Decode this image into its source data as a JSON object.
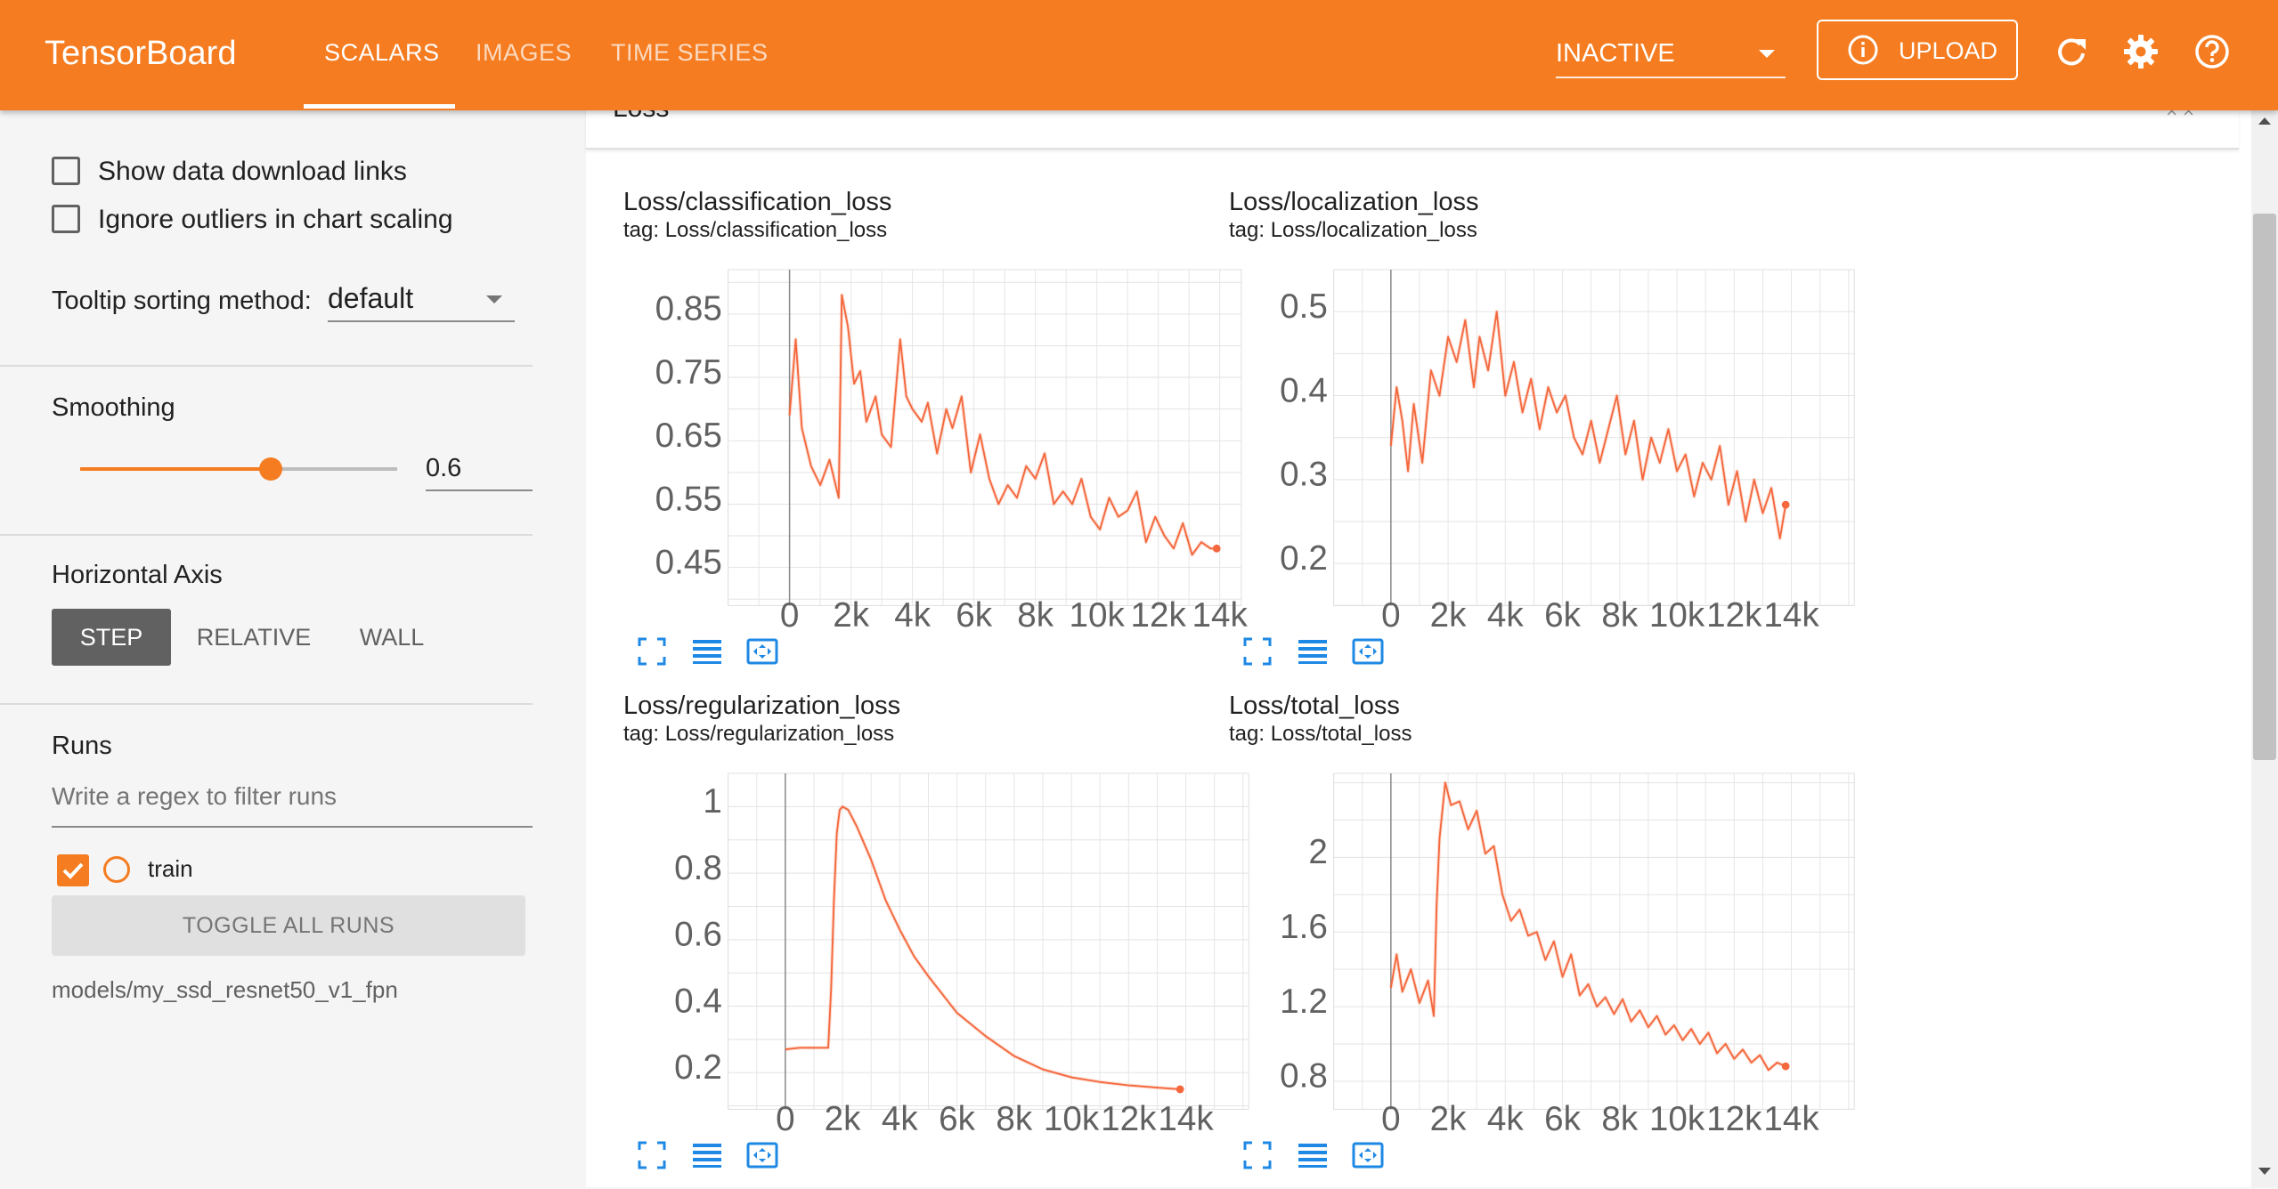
{
  "app": {
    "title": "TensorBoard"
  },
  "header": {
    "tabs": [
      {
        "label": "SCALARS",
        "active": true
      },
      {
        "label": "IMAGES",
        "active": false
      },
      {
        "label": "TIME SERIES",
        "active": false
      }
    ],
    "run_select_value": "INACTIVE",
    "upload_label": "UPLOAD",
    "icons": [
      "refresh-icon",
      "gear-icon",
      "help-icon"
    ],
    "accent_color": "#f57c20"
  },
  "sidebar": {
    "show_download_links": {
      "label": "Show data download links",
      "checked": false
    },
    "ignore_outliers": {
      "label": "Ignore outliers in chart scaling",
      "checked": false
    },
    "tooltip_sorting": {
      "label": "Tooltip sorting method:",
      "value": "default"
    },
    "smoothing": {
      "label": "Smoothing",
      "value": "0.6",
      "fraction": 0.6
    },
    "horizontal_axis": {
      "label": "Horizontal Axis",
      "options": [
        "STEP",
        "RELATIVE",
        "WALL"
      ],
      "selected": "STEP"
    },
    "runs": {
      "label": "Runs",
      "filter_placeholder": "Write a regex to filter runs",
      "items": [
        {
          "name": "train",
          "checked": true,
          "color": "#f4683d"
        }
      ],
      "toggle_label": "TOGGLE ALL RUNS",
      "path": "models/my_ssd_resnet50_v1_fpn"
    }
  },
  "main": {
    "card_title": "Loss",
    "charts": [
      {
        "title": "Loss/classification_loss",
        "tag": "tag: Loss/classification_loss"
      },
      {
        "title": "Loss/localization_loss",
        "tag": "tag: Loss/localization_loss"
      },
      {
        "title": "Loss/regularization_loss",
        "tag": "tag: Loss/regularization_loss"
      },
      {
        "title": "Loss/total_loss",
        "tag": "tag: Loss/total_loss"
      }
    ]
  },
  "chart_data": [
    {
      "type": "line",
      "title": "Loss/classification_loss",
      "x_ticks": [
        0,
        2000,
        4000,
        6000,
        8000,
        10000,
        12000,
        14000
      ],
      "x_tick_labels": [
        "0",
        "2k",
        "4k",
        "6k",
        "8k",
        "10k",
        "12k",
        "14k"
      ],
      "y_ticks": [
        0.45,
        0.55,
        0.65,
        0.75,
        0.85
      ],
      "y_tick_labels": [
        "0.45",
        "0.55",
        "0.65",
        "0.75",
        "0.85"
      ],
      "xlim": [
        -2000,
        14700
      ],
      "ylim": [
        0.39,
        0.92
      ],
      "series": [
        {
          "color": "#f4683d",
          "x": [
            0,
            200,
            400,
            700,
            1000,
            1300,
            1600,
            1700,
            1900,
            2100,
            2300,
            2500,
            2800,
            3000,
            3300,
            3600,
            3800,
            4000,
            4300,
            4500,
            4800,
            5100,
            5300,
            5600,
            5900,
            6200,
            6500,
            6800,
            7100,
            7400,
            7700,
            8000,
            8300,
            8600,
            8900,
            9200,
            9500,
            9800,
            10100,
            10400,
            10700,
            11000,
            11300,
            11600,
            11900,
            12200,
            12500,
            12800,
            13100,
            13400,
            13700,
            13900
          ],
          "y": [
            0.69,
            0.81,
            0.67,
            0.61,
            0.58,
            0.62,
            0.56,
            0.88,
            0.83,
            0.74,
            0.76,
            0.68,
            0.72,
            0.66,
            0.64,
            0.81,
            0.72,
            0.7,
            0.68,
            0.71,
            0.63,
            0.7,
            0.67,
            0.72,
            0.6,
            0.66,
            0.59,
            0.55,
            0.58,
            0.56,
            0.61,
            0.59,
            0.63,
            0.55,
            0.57,
            0.55,
            0.59,
            0.53,
            0.51,
            0.56,
            0.53,
            0.54,
            0.57,
            0.49,
            0.53,
            0.5,
            0.48,
            0.52,
            0.47,
            0.49,
            0.48,
            0.48
          ]
        }
      ]
    },
    {
      "type": "line",
      "title": "Loss/localization_loss",
      "x_ticks": [
        0,
        2000,
        4000,
        6000,
        8000,
        10000,
        12000,
        14000
      ],
      "x_tick_labels": [
        "0",
        "2k",
        "4k",
        "6k",
        "8k",
        "10k",
        "12k",
        "14k"
      ],
      "y_ticks": [
        0.2,
        0.3,
        0.4,
        0.5
      ],
      "y_tick_labels": [
        "0.2",
        "0.3",
        "0.4",
        "0.5"
      ],
      "xlim": [
        -2000,
        16200
      ],
      "ylim": [
        0.15,
        0.55
      ],
      "series": [
        {
          "color": "#f4683d",
          "x": [
            0,
            200,
            400,
            600,
            800,
            1100,
            1400,
            1700,
            2000,
            2300,
            2600,
            2900,
            3100,
            3400,
            3700,
            4000,
            4300,
            4600,
            4900,
            5200,
            5500,
            5800,
            6100,
            6400,
            6700,
            7000,
            7300,
            7600,
            7900,
            8200,
            8500,
            8800,
            9100,
            9400,
            9700,
            10000,
            10300,
            10600,
            10900,
            11200,
            11500,
            11800,
            12100,
            12400,
            12700,
            13000,
            13300,
            13600,
            13800
          ],
          "y": [
            0.34,
            0.41,
            0.37,
            0.31,
            0.39,
            0.32,
            0.43,
            0.4,
            0.47,
            0.44,
            0.49,
            0.41,
            0.47,
            0.43,
            0.5,
            0.4,
            0.44,
            0.38,
            0.42,
            0.36,
            0.41,
            0.38,
            0.4,
            0.35,
            0.33,
            0.37,
            0.32,
            0.36,
            0.4,
            0.33,
            0.37,
            0.3,
            0.35,
            0.32,
            0.36,
            0.31,
            0.33,
            0.28,
            0.32,
            0.3,
            0.34,
            0.27,
            0.31,
            0.25,
            0.3,
            0.26,
            0.29,
            0.23,
            0.27
          ]
        }
      ]
    },
    {
      "type": "line",
      "title": "Loss/regularization_loss",
      "x_ticks": [
        0,
        2000,
        4000,
        6000,
        8000,
        10000,
        12000,
        14000
      ],
      "x_tick_labels": [
        "0",
        "2k",
        "4k",
        "6k",
        "8k",
        "10k",
        "12k",
        "14k"
      ],
      "y_ticks": [
        0.2,
        0.4,
        0.6,
        0.8,
        1.0
      ],
      "y_tick_labels": [
        "0.2",
        "0.4",
        "0.6",
        "0.8",
        "1"
      ],
      "xlim": [
        -2000,
        16200
      ],
      "ylim": [
        0.09,
        1.1
      ],
      "series": [
        {
          "color": "#f4683d",
          "x": [
            0,
            500,
            1000,
            1500,
            1600,
            1700,
            1800,
            1900,
            2000,
            2200,
            2500,
            3000,
            3500,
            4000,
            4500,
            5000,
            6000,
            7000,
            8000,
            9000,
            10000,
            11000,
            12000,
            13000,
            13800
          ],
          "y": [
            0.27,
            0.275,
            0.275,
            0.275,
            0.45,
            0.72,
            0.92,
            0.99,
            1.0,
            0.99,
            0.94,
            0.84,
            0.72,
            0.63,
            0.55,
            0.49,
            0.38,
            0.31,
            0.25,
            0.21,
            0.186,
            0.172,
            0.162,
            0.155,
            0.15
          ]
        }
      ]
    },
    {
      "type": "line",
      "title": "Loss/total_loss",
      "x_ticks": [
        0,
        2000,
        4000,
        6000,
        8000,
        10000,
        12000,
        14000
      ],
      "x_tick_labels": [
        "0",
        "2k",
        "4k",
        "6k",
        "8k",
        "10k",
        "12k",
        "14k"
      ],
      "y_ticks": [
        0.8,
        1.2,
        1.6,
        2.0
      ],
      "y_tick_labels": [
        "0.8",
        "1.2",
        "1.6",
        "2"
      ],
      "xlim": [
        -2000,
        16200
      ],
      "ylim": [
        0.65,
        2.45
      ],
      "series": [
        {
          "color": "#f4683d",
          "x": [
            0,
            200,
            400,
            700,
            1000,
            1300,
            1500,
            1600,
            1700,
            1900,
            2100,
            2400,
            2700,
            3000,
            3300,
            3600,
            3900,
            4200,
            4500,
            4800,
            5100,
            5400,
            5700,
            6000,
            6300,
            6600,
            6900,
            7200,
            7500,
            7800,
            8100,
            8400,
            8700,
            9000,
            9300,
            9600,
            9900,
            10200,
            10500,
            10800,
            11100,
            11400,
            11700,
            12000,
            12300,
            12600,
            12900,
            13200,
            13500,
            13800
          ],
          "y": [
            1.3,
            1.48,
            1.28,
            1.4,
            1.22,
            1.34,
            1.15,
            1.75,
            2.1,
            2.4,
            2.28,
            2.3,
            2.15,
            2.25,
            2.02,
            2.06,
            1.8,
            1.66,
            1.72,
            1.58,
            1.6,
            1.45,
            1.55,
            1.36,
            1.48,
            1.26,
            1.32,
            1.2,
            1.25,
            1.16,
            1.24,
            1.12,
            1.18,
            1.09,
            1.15,
            1.05,
            1.1,
            1.02,
            1.08,
            1.0,
            1.06,
            0.95,
            1.0,
            0.92,
            0.97,
            0.9,
            0.94,
            0.86,
            0.9,
            0.88
          ]
        }
      ]
    }
  ]
}
